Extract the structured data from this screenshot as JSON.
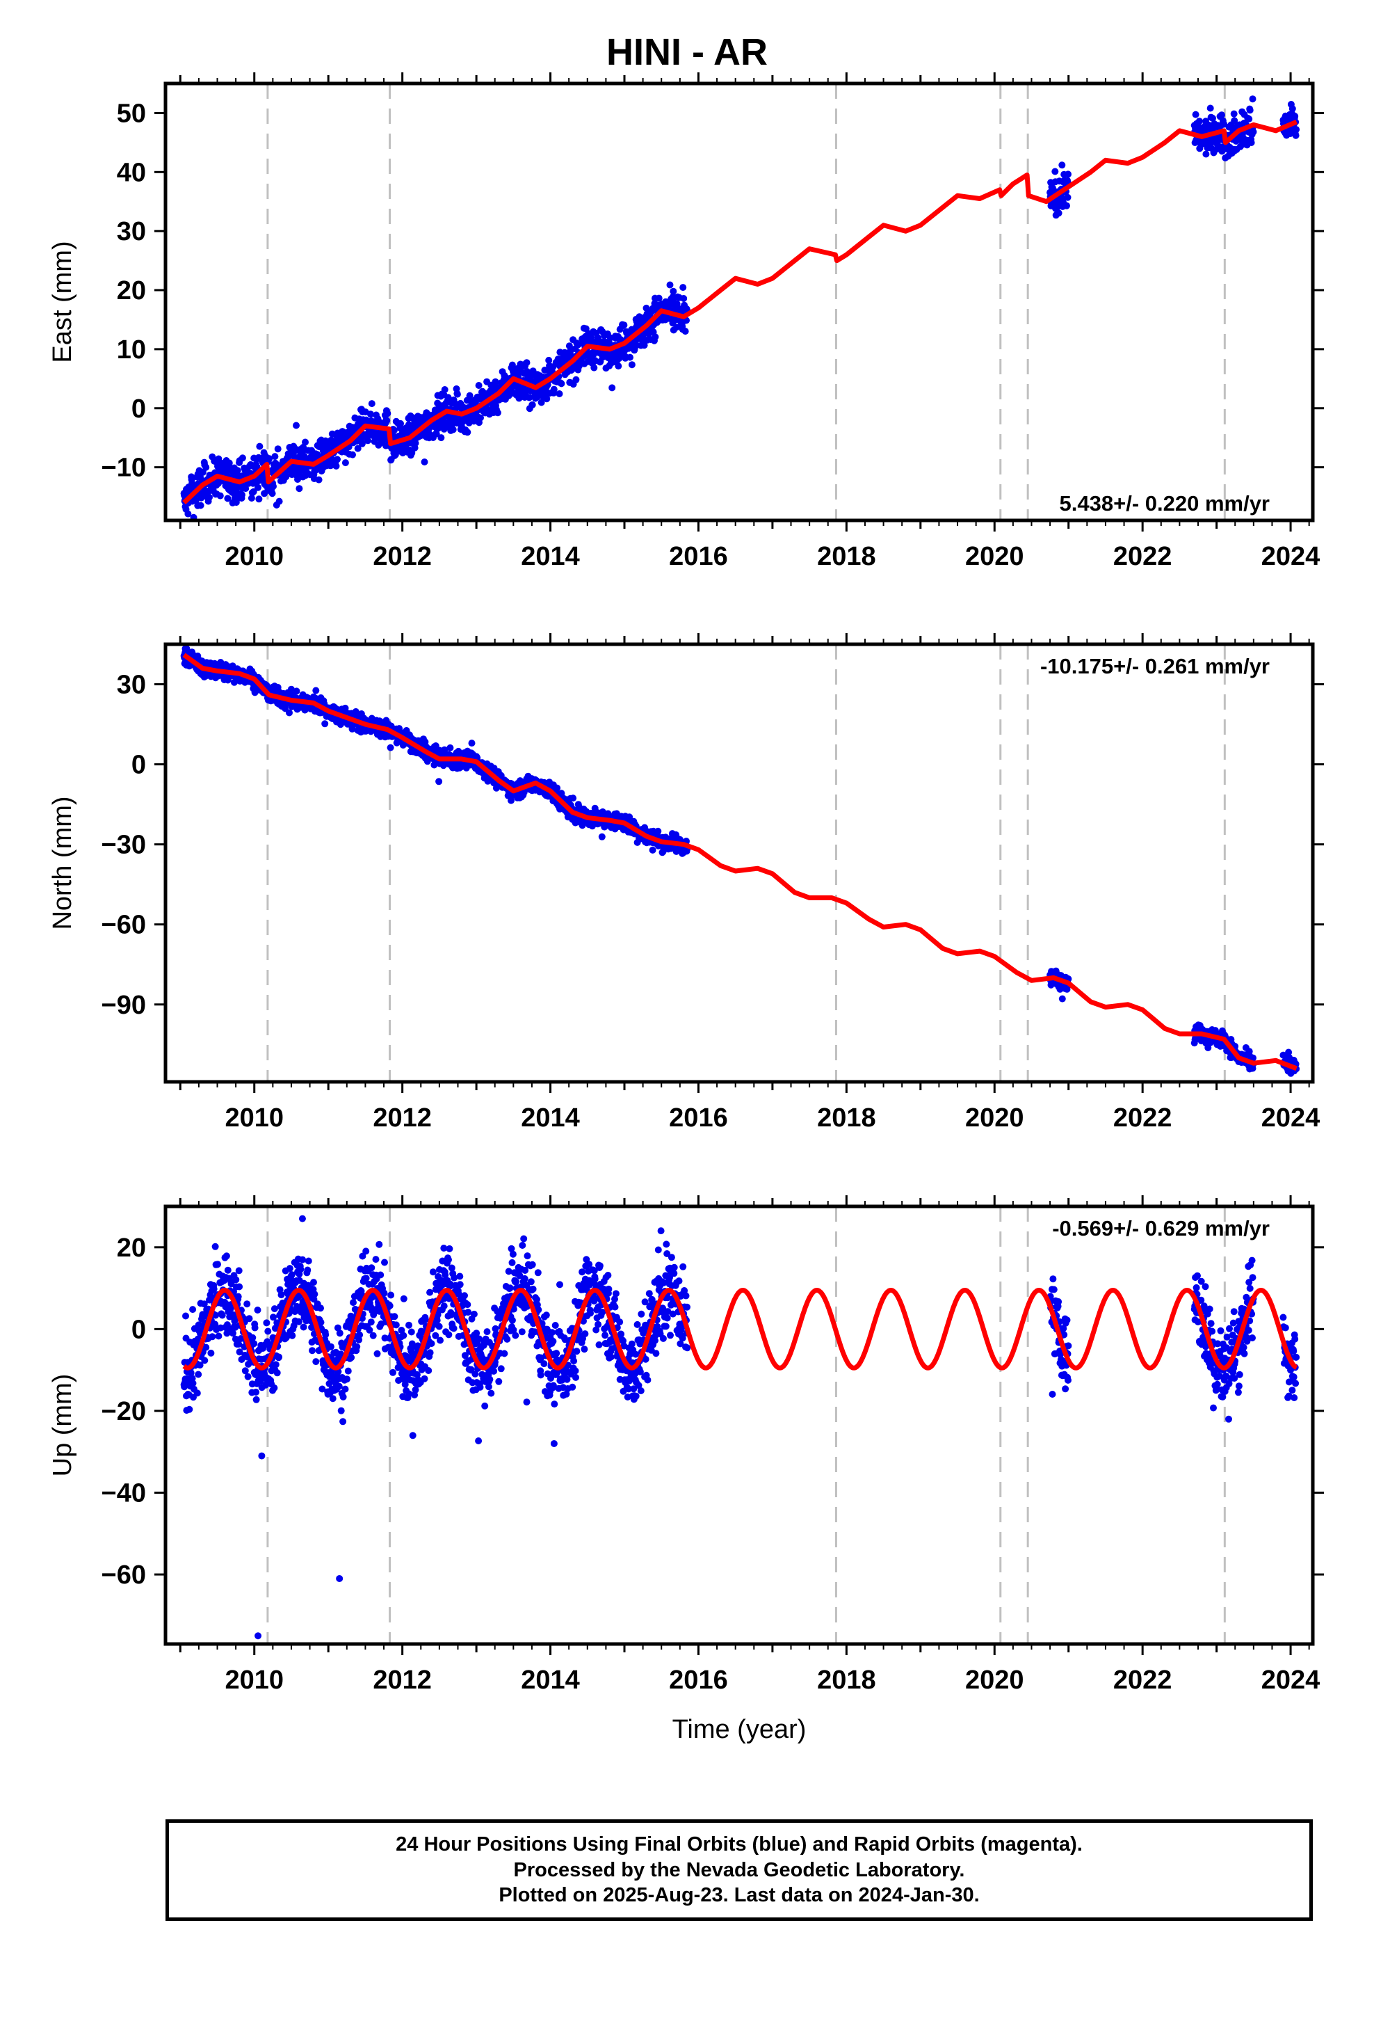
{
  "title": "HINI - AR",
  "footer": {
    "line1": "24 Hour Positions Using Final Orbits (blue) and Rapid Orbits (magenta).",
    "line2": "Processed by the Nevada Geodetic Laboratory.",
    "line3": "Plotted on 2025-Aug-23. Last data on 2024-Jan-30."
  },
  "colors": {
    "observations": "#0000ee",
    "model": "#ff0000",
    "events": "#c0c0c0",
    "axes": "#000000"
  },
  "chart_data": [
    {
      "type": "scatter",
      "panel": "east",
      "ylabel": "East (mm)",
      "xlabel": "",
      "xlim": [
        2008.8,
        2024.3
      ],
      "ylim": [
        -19,
        55
      ],
      "xticks": [
        2010,
        2012,
        2014,
        2016,
        2018,
        2020,
        2022,
        2024
      ],
      "yticks": [
        -10,
        0,
        10,
        20,
        30,
        40,
        50
      ],
      "annotation": "5.438+/- 0.220 mm/yr",
      "event_lines": [
        2010.18,
        2011.83,
        2017.86,
        2020.08,
        2020.45,
        2023.11
      ],
      "observation_segments": [
        [
          2009.05,
          2015.85
        ],
        [
          2020.75,
          2021.0
        ],
        [
          2022.7,
          2023.5
        ],
        [
          2023.9,
          2024.08
        ]
      ],
      "model_line": [
        [
          2009.05,
          -16
        ],
        [
          2009.3,
          -13
        ],
        [
          2009.5,
          -11.5
        ],
        [
          2009.8,
          -12.5
        ],
        [
          2010.0,
          -11.5
        ],
        [
          2010.17,
          -9.5
        ],
        [
          2010.19,
          -12.5
        ],
        [
          2010.5,
          -9
        ],
        [
          2010.8,
          -9.5
        ],
        [
          2011.0,
          -8
        ],
        [
          2011.3,
          -5.5
        ],
        [
          2011.5,
          -3
        ],
        [
          2011.82,
          -3.5
        ],
        [
          2011.84,
          -6
        ],
        [
          2012.1,
          -5
        ],
        [
          2012.4,
          -2
        ],
        [
          2012.6,
          -0.5
        ],
        [
          2012.8,
          -1
        ],
        [
          2013.0,
          0
        ],
        [
          2013.3,
          2.5
        ],
        [
          2013.5,
          5
        ],
        [
          2013.8,
          3.5
        ],
        [
          2014.0,
          5
        ],
        [
          2014.3,
          8
        ],
        [
          2014.5,
          10.5
        ],
        [
          2014.8,
          10
        ],
        [
          2015.0,
          11
        ],
        [
          2015.3,
          14
        ],
        [
          2015.5,
          16.5
        ],
        [
          2015.8,
          15.5
        ],
        [
          2016.0,
          17
        ],
        [
          2016.3,
          20
        ],
        [
          2016.5,
          22
        ],
        [
          2016.8,
          21
        ],
        [
          2017.0,
          22
        ],
        [
          2017.3,
          25
        ],
        [
          2017.5,
          27
        ],
        [
          2017.85,
          26
        ],
        [
          2017.87,
          25
        ],
        [
          2018.0,
          26
        ],
        [
          2018.3,
          29
        ],
        [
          2018.5,
          31
        ],
        [
          2018.8,
          30
        ],
        [
          2019.0,
          31
        ],
        [
          2019.3,
          34
        ],
        [
          2019.5,
          36
        ],
        [
          2019.8,
          35.5
        ],
        [
          2020.07,
          37
        ],
        [
          2020.09,
          36
        ],
        [
          2020.25,
          38
        ],
        [
          2020.44,
          39.5
        ],
        [
          2020.46,
          36
        ],
        [
          2020.7,
          35
        ],
        [
          2021.0,
          37.5
        ],
        [
          2021.3,
          40
        ],
        [
          2021.5,
          42
        ],
        [
          2021.8,
          41.5
        ],
        [
          2022.0,
          42.5
        ],
        [
          2022.3,
          45
        ],
        [
          2022.5,
          47
        ],
        [
          2022.8,
          46
        ],
        [
          2023.1,
          47
        ],
        [
          2023.12,
          45
        ],
        [
          2023.3,
          47
        ],
        [
          2023.5,
          48
        ],
        [
          2023.8,
          47
        ],
        [
          2024.08,
          48.5
        ]
      ]
    },
    {
      "type": "scatter",
      "panel": "north",
      "ylabel": "North (mm)",
      "xlabel": "",
      "xlim": [
        2008.8,
        2024.3
      ],
      "ylim": [
        -119,
        45
      ],
      "xticks": [
        2010,
        2012,
        2014,
        2016,
        2018,
        2020,
        2022,
        2024
      ],
      "yticks": [
        -90,
        -60,
        -30,
        0,
        30
      ],
      "annotation": "-10.175+/- 0.261 mm/yr",
      "event_lines": [
        2010.18,
        2011.83,
        2017.86,
        2020.08,
        2020.45,
        2023.11
      ],
      "observation_segments": [
        [
          2009.05,
          2015.85
        ],
        [
          2020.75,
          2021.0
        ],
        [
          2022.7,
          2023.5
        ],
        [
          2023.9,
          2024.08
        ]
      ],
      "model_line": [
        [
          2009.05,
          41
        ],
        [
          2009.3,
          36
        ],
        [
          2009.5,
          35
        ],
        [
          2009.8,
          34
        ],
        [
          2010.0,
          32
        ],
        [
          2010.2,
          26
        ],
        [
          2010.5,
          24
        ],
        [
          2010.8,
          23
        ],
        [
          2011.0,
          20
        ],
        [
          2011.3,
          17
        ],
        [
          2011.5,
          15
        ],
        [
          2011.8,
          13
        ],
        [
          2012.0,
          10
        ],
        [
          2012.3,
          5
        ],
        [
          2012.5,
          2
        ],
        [
          2012.8,
          2
        ],
        [
          2013.0,
          1
        ],
        [
          2013.3,
          -6
        ],
        [
          2013.5,
          -10
        ],
        [
          2013.8,
          -7
        ],
        [
          2014.0,
          -10
        ],
        [
          2014.3,
          -18
        ],
        [
          2014.5,
          -20
        ],
        [
          2014.8,
          -21
        ],
        [
          2015.0,
          -22
        ],
        [
          2015.3,
          -27
        ],
        [
          2015.5,
          -29
        ],
        [
          2015.8,
          -30
        ],
        [
          2016.0,
          -32
        ],
        [
          2016.3,
          -38
        ],
        [
          2016.5,
          -40
        ],
        [
          2016.8,
          -39
        ],
        [
          2017.0,
          -41
        ],
        [
          2017.3,
          -48
        ],
        [
          2017.5,
          -50
        ],
        [
          2017.8,
          -50
        ],
        [
          2018.0,
          -52
        ],
        [
          2018.3,
          -58
        ],
        [
          2018.5,
          -61
        ],
        [
          2018.8,
          -60
        ],
        [
          2019.0,
          -62
        ],
        [
          2019.3,
          -69
        ],
        [
          2019.5,
          -71
        ],
        [
          2019.8,
          -70
        ],
        [
          2020.0,
          -72
        ],
        [
          2020.3,
          -78
        ],
        [
          2020.5,
          -81
        ],
        [
          2020.8,
          -80
        ],
        [
          2021.0,
          -82
        ],
        [
          2021.3,
          -89
        ],
        [
          2021.5,
          -91
        ],
        [
          2021.8,
          -90
        ],
        [
          2022.0,
          -92
        ],
        [
          2022.3,
          -99
        ],
        [
          2022.5,
          -101
        ],
        [
          2022.8,
          -101
        ],
        [
          2023.1,
          -103
        ],
        [
          2023.3,
          -110
        ],
        [
          2023.5,
          -112
        ],
        [
          2023.8,
          -111
        ],
        [
          2024.08,
          -114
        ]
      ]
    },
    {
      "type": "scatter",
      "panel": "up",
      "ylabel": "Up (mm)",
      "xlabel": "Time (year)",
      "xlim": [
        2008.8,
        2024.3
      ],
      "ylim": [
        -77,
        30
      ],
      "xticks": [
        2010,
        2012,
        2014,
        2016,
        2018,
        2020,
        2022,
        2024
      ],
      "yticks": [
        -60,
        -40,
        -20,
        0,
        20
      ],
      "annotation": "-0.569+/- 0.629 mm/yr",
      "event_lines": [
        2010.18,
        2011.83,
        2017.86,
        2020.08,
        2020.45,
        2023.11
      ],
      "observation_segments": [
        [
          2009.05,
          2015.85
        ],
        [
          2020.75,
          2021.0
        ],
        [
          2022.7,
          2023.5
        ],
        [
          2023.9,
          2024.08
        ]
      ],
      "outliers": [
        [
          2010.05,
          -75
        ],
        [
          2010.1,
          -31
        ],
        [
          2011.15,
          -61
        ],
        [
          2014.05,
          -28
        ],
        [
          2010.65,
          27
        ]
      ],
      "seasonal": {
        "amplitude_mm": 9.5,
        "peak_phase_year": 0.6,
        "offset_mm": 0
      }
    }
  ]
}
